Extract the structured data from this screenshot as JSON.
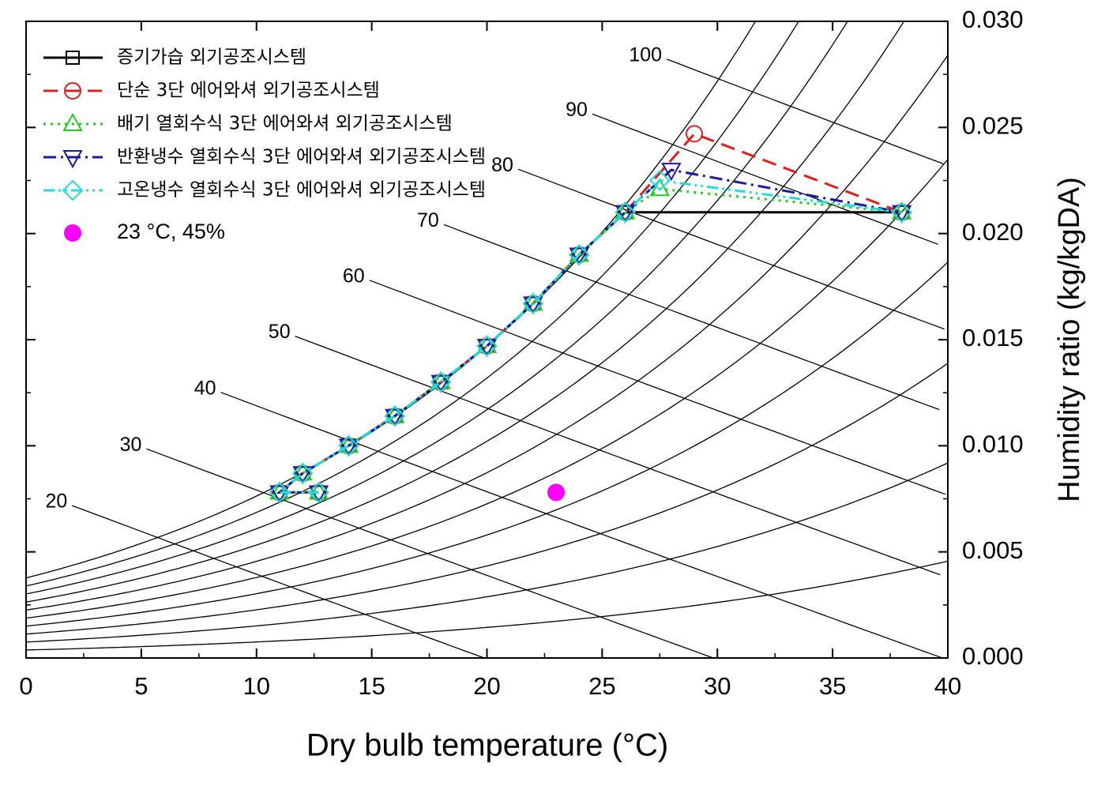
{
  "chart_data": {
    "type": "line",
    "x_label": "Dry bulb temperature (°C)",
    "y_label": "Humidity ratio (kg/kgDA)",
    "xlim": [
      0,
      40
    ],
    "xticks": [
      0,
      5,
      10,
      15,
      20,
      25,
      30,
      35,
      40
    ],
    "ylim": [
      0,
      0.03
    ],
    "yticks": [
      {
        "value": 0,
        "label": "0.000"
      },
      {
        "value": 0.005,
        "label": "0.005"
      },
      {
        "value": 0.01,
        "label": "0.010"
      },
      {
        "value": 0.015,
        "label": "0.015"
      },
      {
        "value": 0.02,
        "label": "0.020"
      },
      {
        "value": 0.025,
        "label": "0.025"
      },
      {
        "value": 0.03,
        "label": "0.030"
      }
    ],
    "enthalpy_lines": [
      20,
      30,
      40,
      50,
      60,
      70,
      80,
      90,
      100
    ],
    "rh_curves": [
      10,
      20,
      30,
      40,
      50,
      60,
      70,
      80,
      90,
      100
    ],
    "legend": "upper left",
    "series": [
      {
        "name": "증기가습 외기공조시스템",
        "color": "#000000",
        "marker": "square",
        "x": [
          12.7,
          11,
          12,
          14,
          16,
          18,
          20,
          22,
          24,
          26,
          38
        ],
        "values": [
          0.0078,
          0.0078,
          0.0087,
          0.01,
          0.0114,
          0.013,
          0.0147,
          0.0167,
          0.019,
          0.021,
          0.021
        ]
      },
      {
        "name": "단순 3단 에어와셔 외기공조시스템",
        "color": "#e02020",
        "marker": "circle",
        "x": [
          12.7,
          11,
          12,
          14,
          16,
          18,
          20,
          22,
          24,
          26,
          29,
          38
        ],
        "values": [
          0.0078,
          0.0078,
          0.0087,
          0.01,
          0.0114,
          0.013,
          0.0147,
          0.0167,
          0.019,
          0.021,
          0.0247,
          0.021
        ]
      },
      {
        "name": "배기 열회수식 3단 에어와셔 외기공조시스템",
        "color": "#22cc22",
        "marker": "triangle",
        "x": [
          12.7,
          11,
          12,
          14,
          16,
          18,
          20,
          22,
          24,
          26,
          27.5,
          38
        ],
        "values": [
          0.0078,
          0.0078,
          0.0087,
          0.01,
          0.0114,
          0.013,
          0.0147,
          0.0167,
          0.019,
          0.021,
          0.0221,
          0.021
        ]
      },
      {
        "name": "반환냉수 열회수식 3단 에어와셔 외기공조시스템",
        "color": "#1a1aa0",
        "marker": "down-triangle",
        "x": [
          12.7,
          11,
          12,
          14,
          16,
          18,
          20,
          22,
          24,
          26,
          28,
          38
        ],
        "values": [
          0.0078,
          0.0078,
          0.0087,
          0.01,
          0.0114,
          0.013,
          0.0147,
          0.0167,
          0.019,
          0.021,
          0.023,
          0.021
        ]
      },
      {
        "name": "고온냉수 열회수식 3단 에어와셔 외기공조시스템",
        "color": "#22dddd",
        "marker": "diamond",
        "x": [
          12.7,
          11,
          12,
          14,
          16,
          18,
          20,
          22,
          24,
          26,
          27.5,
          38
        ],
        "values": [
          0.0078,
          0.0078,
          0.0087,
          0.01,
          0.0114,
          0.013,
          0.0147,
          0.0167,
          0.019,
          0.021,
          0.0225,
          0.021
        ]
      },
      {
        "name": "23 °C, 45%",
        "color": "#ff00ff",
        "marker": "dot",
        "x": [
          23
        ],
        "values": [
          0.0078
        ]
      }
    ]
  }
}
